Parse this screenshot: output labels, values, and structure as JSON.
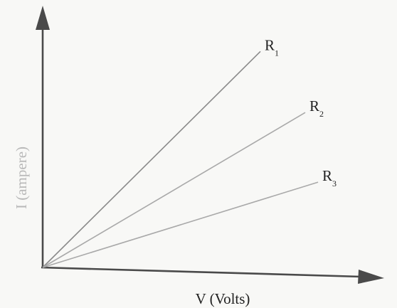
{
  "chart_data": {
    "type": "line",
    "xlabel": "V (Volts)",
    "ylabel": "I (ampere)",
    "grid": false,
    "xlim": [
      0,
      10
    ],
    "ylim": [
      0,
      10
    ],
    "series": [
      {
        "name": "R",
        "subscript": "1",
        "color": "#8a8a8a",
        "points": [
          [
            0,
            0
          ],
          [
            6.8,
            9.3
          ]
        ]
      },
      {
        "name": "R",
        "subscript": "2",
        "color": "#a9a9a9",
        "points": [
          [
            0,
            0
          ],
          [
            8.2,
            6.8
          ]
        ]
      },
      {
        "name": "R",
        "subscript": "3",
        "color": "#a9a9a9",
        "points": [
          [
            0,
            0
          ],
          [
            8.6,
            3.9
          ]
        ]
      }
    ]
  }
}
